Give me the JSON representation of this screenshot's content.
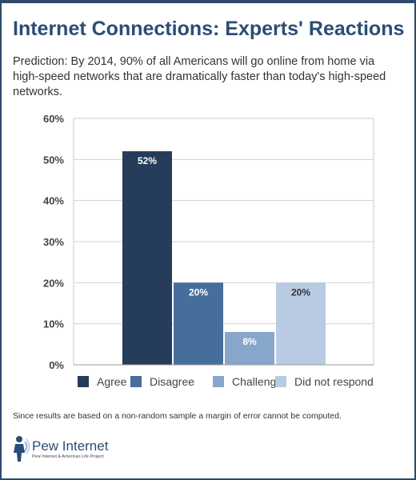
{
  "header": {
    "title": "Internet Connections: Experts' Reactions",
    "subtitle": "Prediction: By 2014, 90% of all Americans will go online from home via high-speed networks that are dramatically faster than today's high-speed networks."
  },
  "chart_data": {
    "type": "bar",
    "categories": [
      "Agree",
      "Disagree",
      "Challenge",
      "Did not respond"
    ],
    "values": [
      52,
      20,
      8,
      20
    ],
    "data_labels": [
      "52%",
      "20%",
      "8%",
      "20%"
    ],
    "colors": [
      "#253c5a",
      "#466e9c",
      "#87a6cb",
      "#b8cbe3"
    ],
    "label_colors": [
      "#ffffff",
      "#ffffff",
      "#ffffff",
      "#333333"
    ],
    "ylim": [
      0,
      60
    ],
    "yticks": [
      0,
      10,
      20,
      30,
      40,
      50,
      60
    ],
    "ytick_labels": [
      "0%",
      "10%",
      "20%",
      "30%",
      "40%",
      "50%",
      "60%"
    ],
    "grid": true,
    "legend": "bottom",
    "xlabel": "",
    "ylabel": ""
  },
  "footer": {
    "note": "Since results are based on a non-random sample a margin of error cannot be computed.",
    "logo_name": "Pew Internet",
    "logo_tagline": "Pew Internet & American Life Project"
  }
}
